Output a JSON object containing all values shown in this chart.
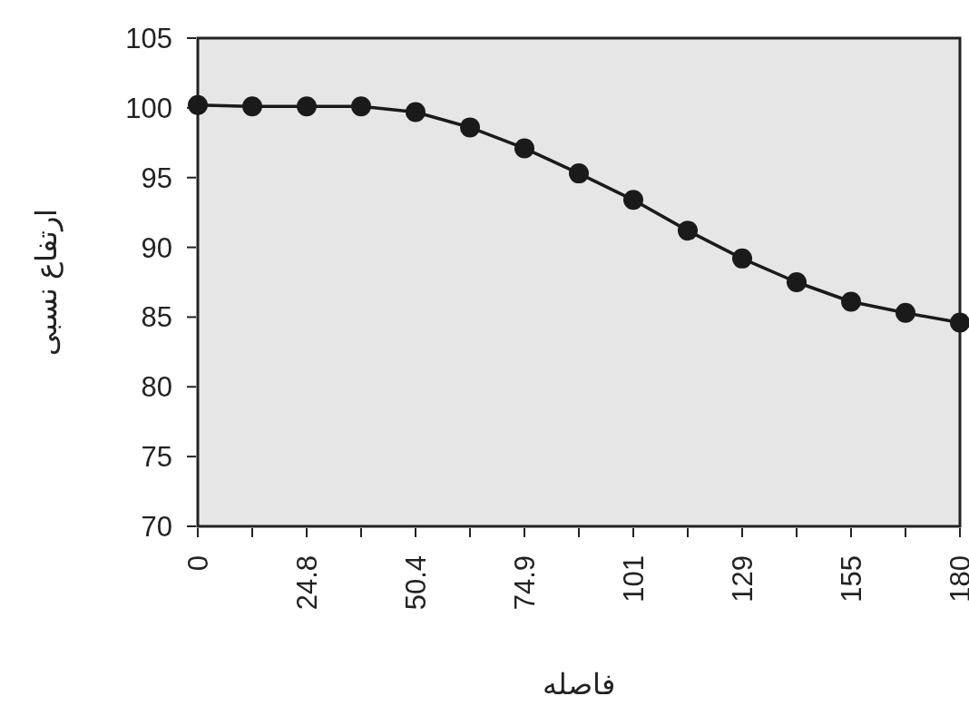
{
  "chart_data": {
    "type": "line",
    "xlabel": "فاصله",
    "ylabel": "ارتفاع نسبی",
    "categories": [
      "0",
      null,
      "24.8",
      null,
      "50.4",
      null,
      "74.9",
      null,
      "101",
      null,
      "129",
      null,
      "155",
      null,
      "180"
    ],
    "series": [
      {
        "color": "#1a1a1a",
        "values": [
          100.2,
          100.1,
          100.1,
          100.1,
          99.7,
          98.6,
          97.1,
          95.3,
          93.4,
          91.2,
          89.2,
          87.5,
          86.1,
          85.3,
          84.6
        ]
      }
    ],
    "ylim": [
      70,
      105
    ],
    "yticks": [
      70,
      75,
      80,
      85,
      90,
      95,
      100,
      105
    ],
    "marker": "circle",
    "line_style": "solid",
    "grid": false
  }
}
